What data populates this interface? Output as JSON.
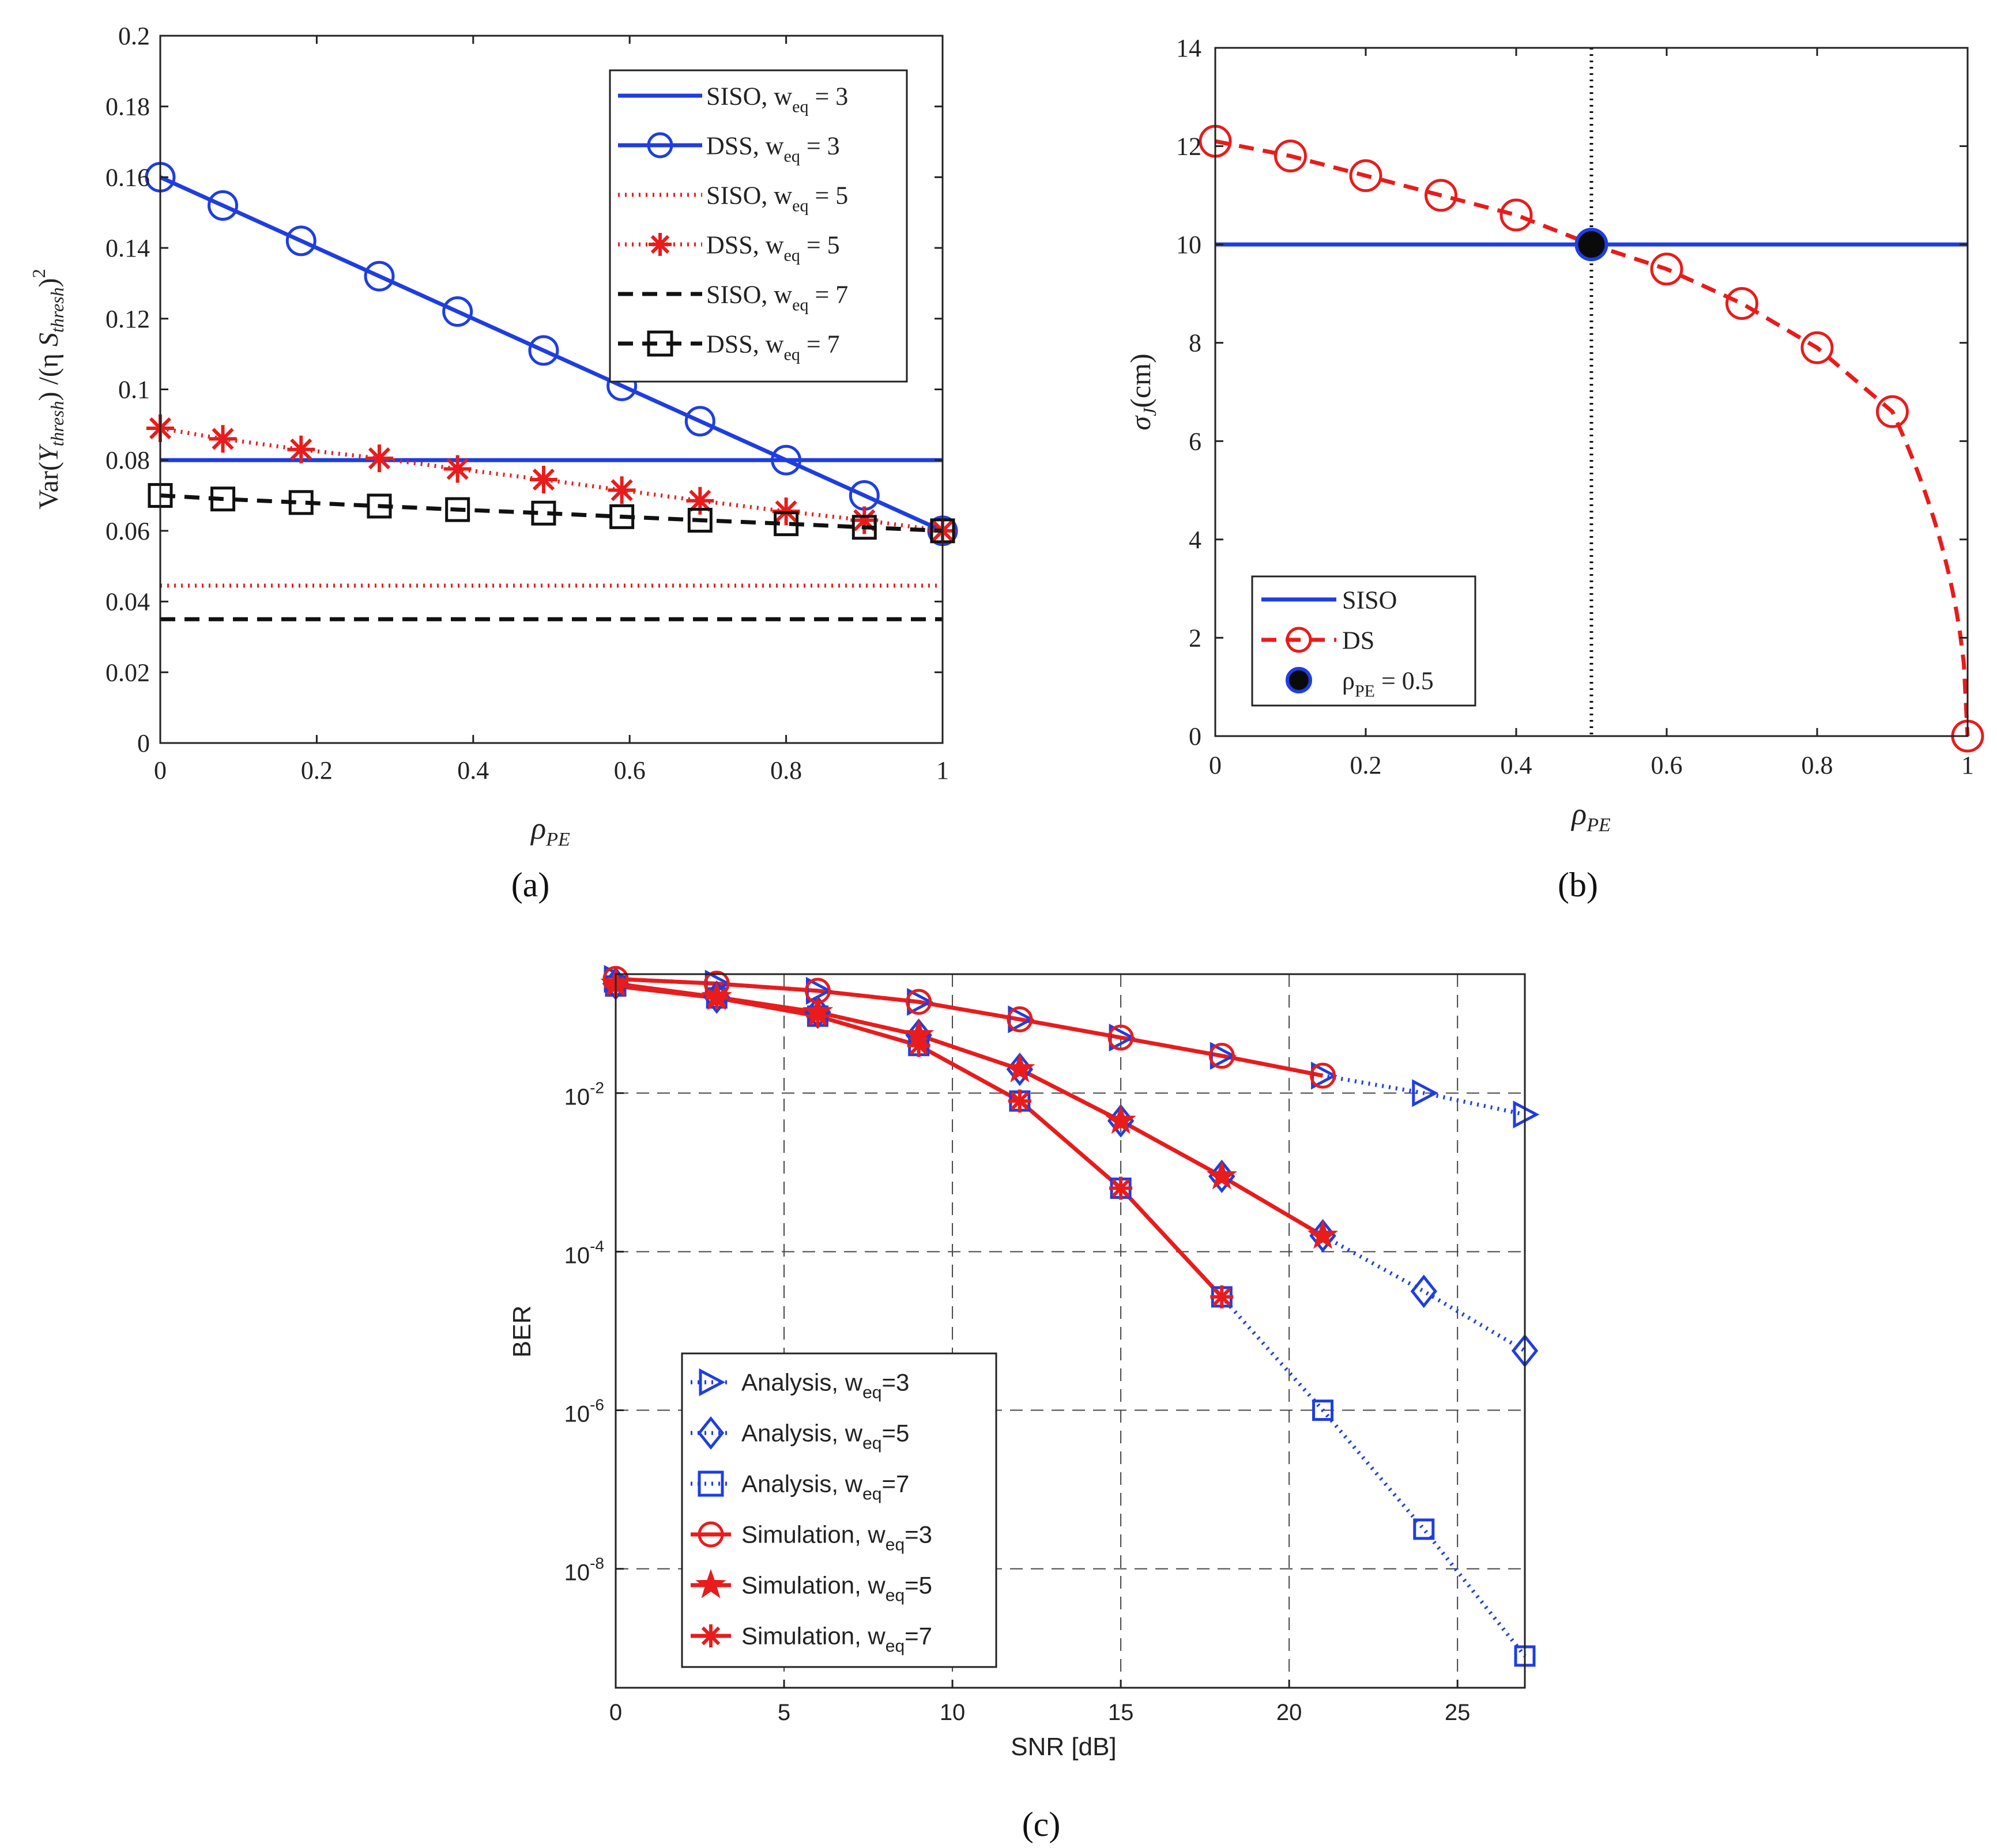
{
  "chart_data": [
    {
      "type": "line",
      "panel_label": "(a)",
      "xlabel": "ρ",
      "xlabel_sub": "PE",
      "ylabel_parts": [
        "Var(",
        "Y",
        "thresh",
        ") /(η ",
        "S",
        "thresh",
        ")",
        "2"
      ],
      "xlim": [
        0,
        1
      ],
      "ylim": [
        0,
        0.2
      ],
      "xticks": [
        "0",
        "0.2",
        "0.4",
        "0.6",
        "0.8",
        "1"
      ],
      "xtick_values": [
        0,
        0.2,
        0.4,
        0.6,
        0.8,
        1
      ],
      "yticks": [
        "0",
        "0.02",
        "0.04",
        "0.06",
        "0.08",
        "0.1",
        "0.12",
        "0.14",
        "0.16",
        "0.18",
        "0.2"
      ],
      "ytick_values": [
        0,
        0.02,
        0.04,
        0.06,
        0.08,
        0.1,
        0.12,
        0.14,
        0.16,
        0.18,
        0.2
      ],
      "grid": false,
      "legend_position": "top-right",
      "series": [
        {
          "name": "SISO, w",
          "sub": "eq",
          "suffix": " = 3",
          "color": "#1f3ee0",
          "dash": "solid",
          "marker": "none",
          "x": [
            0,
            1
          ],
          "y": [
            0.08,
            0.08
          ]
        },
        {
          "name": "DSS, w",
          "sub": "eq",
          "suffix": " = 3",
          "color": "#1f3ee0",
          "dash": "solid",
          "marker": "circle",
          "x": [
            0,
            0.08,
            0.18,
            0.28,
            0.38,
            0.49,
            0.59,
            0.69,
            0.8,
            0.9,
            1
          ],
          "y": [
            0.16,
            0.152,
            0.142,
            0.132,
            0.122,
            0.111,
            0.101,
            0.091,
            0.08,
            0.07,
            0.06
          ]
        },
        {
          "name": "SISO, w",
          "sub": "eq",
          "suffix": " = 5",
          "color": "#e81c1c",
          "dash": "dotted",
          "marker": "none",
          "x": [
            0,
            1
          ],
          "y": [
            0.0445,
            0.0445
          ]
        },
        {
          "name": "DSS, w",
          "sub": "eq",
          "suffix": " = 5",
          "color": "#e81c1c",
          "dash": "dotted",
          "marker": "asterisk",
          "x": [
            0,
            0.08,
            0.18,
            0.28,
            0.38,
            0.49,
            0.59,
            0.69,
            0.8,
            0.9,
            1
          ],
          "y": [
            0.089,
            0.086,
            0.083,
            0.0805,
            0.0775,
            0.0745,
            0.0715,
            0.0685,
            0.0655,
            0.063,
            0.06
          ]
        },
        {
          "name": "SISO, w",
          "sub": "eq",
          "suffix": " = 7",
          "color": "#111111",
          "dash": "dashed",
          "marker": "none",
          "x": [
            0,
            1
          ],
          "y": [
            0.035,
            0.035
          ]
        },
        {
          "name": "DSS, w",
          "sub": "eq",
          "suffix": " = 7",
          "color": "#111111",
          "dash": "dashed",
          "marker": "square",
          "x": [
            0,
            0.08,
            0.18,
            0.28,
            0.38,
            0.49,
            0.59,
            0.69,
            0.8,
            0.9,
            1
          ],
          "y": [
            0.07,
            0.069,
            0.068,
            0.067,
            0.066,
            0.065,
            0.064,
            0.063,
            0.062,
            0.061,
            0.06
          ]
        }
      ]
    },
    {
      "type": "line",
      "panel_label": "(b)",
      "xlabel": "ρ",
      "xlabel_sub": "PE",
      "ylabel": "σ",
      "ylabel_sub": "J",
      "ylabel_suffix": "(cm)",
      "xlim": [
        0,
        1
      ],
      "ylim": [
        0,
        14
      ],
      "xticks": [
        "0",
        "0.2",
        "0.4",
        "0.6",
        "0.8",
        "1"
      ],
      "xtick_values": [
        0,
        0.2,
        0.4,
        0.6,
        0.8,
        1
      ],
      "yticks": [
        "0",
        "2",
        "4",
        "6",
        "8",
        "10",
        "12",
        "14"
      ],
      "ytick_values": [
        0,
        2,
        4,
        6,
        8,
        10,
        12,
        14
      ],
      "grid": false,
      "legend_position": "bottom-left",
      "vline_x": 0.5,
      "series": [
        {
          "name": "SISO",
          "color": "#1f3ee0",
          "dash": "solid",
          "marker": "none",
          "x": [
            0,
            1
          ],
          "y": [
            10,
            10
          ]
        },
        {
          "name": "DS",
          "color": "#e81c1c",
          "dash": "dashed",
          "marker": "circle",
          "x": [
            0,
            0.1,
            0.2,
            0.3,
            0.4,
            0.5,
            0.6,
            0.7,
            0.8,
            0.9,
            1
          ],
          "y": [
            12.1,
            11.8,
            11.4,
            11.0,
            10.6,
            10.0,
            9.5,
            8.8,
            7.9,
            6.6,
            0
          ],
          "curve": "sqrt"
        },
        {
          "name": "ρ",
          "sub": "PE",
          "suffix": " = 0.5",
          "color": "#0a0a0a",
          "edge": "#1f3ee0",
          "marker": "filled-circle",
          "x": [
            0.5
          ],
          "y": [
            10
          ]
        }
      ]
    },
    {
      "type": "line",
      "panel_label": "(c)",
      "xlabel": "SNR [dB]",
      "ylabel": "BER",
      "xscale": "linear",
      "yscale": "log",
      "xlim": [
        0,
        27
      ],
      "ylim_exp": [
        -9.5,
        -0.5
      ],
      "xticks": [
        "0",
        "5",
        "10",
        "15",
        "20",
        "25"
      ],
      "xtick_values": [
        0,
        5,
        10,
        15,
        20,
        25
      ],
      "yticks": [
        {
          "base": "10",
          "exp": "-2",
          "value": -2
        },
        {
          "base": "10",
          "exp": "-4",
          "value": -4
        },
        {
          "base": "10",
          "exp": "-6",
          "value": -6
        },
        {
          "base": "10",
          "exp": "-8",
          "value": -8
        }
      ],
      "grid": true,
      "legend_position": "bottom-left",
      "series": [
        {
          "name": "Analysis, w",
          "sub": "eq",
          "suffix": "=3",
          "color": "#1f3ee0",
          "dash": "dotted",
          "marker": "triangle-right",
          "x": [
            0,
            3,
            6,
            9,
            12,
            15,
            18,
            21,
            24,
            27
          ],
          "log10y": [
            -0.56,
            -0.62,
            -0.71,
            -0.85,
            -1.07,
            -1.3,
            -1.53,
            -1.78,
            -2.0,
            -2.27
          ]
        },
        {
          "name": "Analysis, w",
          "sub": "eq",
          "suffix": "=5",
          "color": "#1f3ee0",
          "dash": "dotted",
          "marker": "diamond",
          "x": [
            0,
            3,
            6,
            9,
            12,
            15,
            18,
            21,
            24,
            27
          ],
          "log10y": [
            -0.62,
            -0.79,
            -0.98,
            -1.27,
            -1.7,
            -2.35,
            -3.05,
            -3.8,
            -4.5,
            -5.25
          ]
        },
        {
          "name": "Analysis, w",
          "sub": "eq",
          "suffix": "=7",
          "color": "#1f3ee0",
          "dash": "dotted",
          "marker": "square",
          "x": [
            0,
            3,
            6,
            9,
            12,
            15,
            18,
            21,
            24,
            27
          ],
          "log10y": [
            -0.65,
            -0.8,
            -1.03,
            -1.4,
            -2.1,
            -3.2,
            -4.57,
            -6.0,
            -7.5,
            -9.1
          ]
        },
        {
          "name": "Simulation, w",
          "sub": "eq",
          "suffix": "=3",
          "color": "#e81c1c",
          "dash": "solid",
          "marker": "circle",
          "x": [
            0,
            3,
            6,
            9,
            12,
            15,
            18,
            21
          ],
          "log10y": [
            -0.56,
            -0.62,
            -0.71,
            -0.85,
            -1.07,
            -1.3,
            -1.53,
            -1.78
          ]
        },
        {
          "name": "Simulation, w",
          "sub": "eq",
          "suffix": "=5",
          "color": "#e81c1c",
          "dash": "solid",
          "marker": "star",
          "x": [
            0,
            3,
            6,
            9,
            12,
            15,
            18,
            21
          ],
          "log10y": [
            -0.62,
            -0.79,
            -0.98,
            -1.27,
            -1.7,
            -2.35,
            -3.05,
            -3.8
          ]
        },
        {
          "name": "Simulation, w",
          "sub": "eq",
          "suffix": "=7",
          "color": "#e81c1c",
          "dash": "solid",
          "marker": "asterisk",
          "x": [
            0,
            3,
            6,
            9,
            12,
            15,
            18
          ],
          "log10y": [
            -0.65,
            -0.8,
            -1.03,
            -1.4,
            -2.1,
            -3.2,
            -4.57
          ]
        }
      ]
    }
  ]
}
